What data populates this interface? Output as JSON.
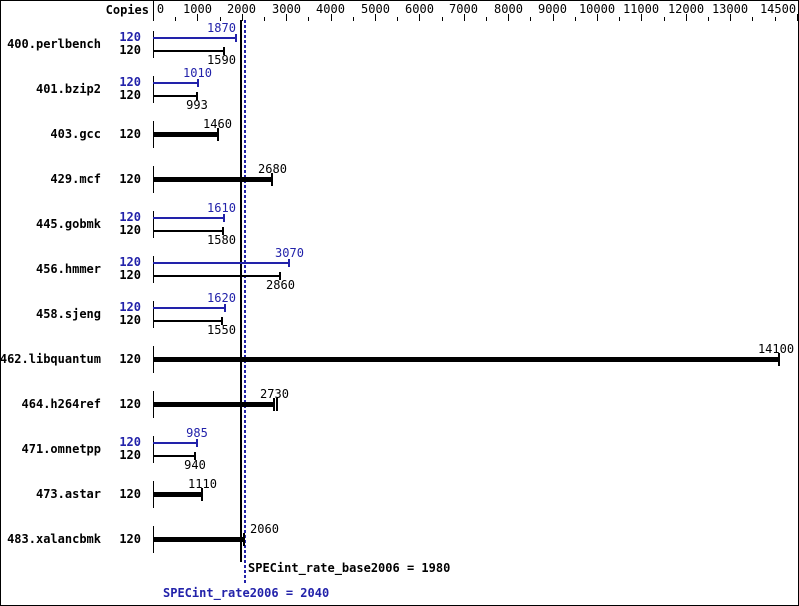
{
  "header": {
    "copies_label": "Copies"
  },
  "colors": {
    "peak_blue": "#2222aa",
    "base_black": "#000000",
    "background": "#ffffff"
  },
  "summary": {
    "base_line_text": "SPECint_rate_base2006 = 1980",
    "peak_line_text": "SPECint_rate2006 = 2040"
  },
  "chart_data": {
    "type": "bar",
    "orientation": "horizontal",
    "title": "",
    "xlabel": "",
    "ylabel": "Copies",
    "xlim": [
      0,
      14500
    ],
    "grid": false,
    "legend_position": "none",
    "axis_labeled_ticks": [
      0,
      1000,
      2000,
      3000,
      4000,
      5000,
      6000,
      7000,
      8000,
      9000,
      10000,
      11000,
      12000,
      13000,
      14500
    ],
    "minor_tick_step": 500,
    "categories": [
      "400.perlbench",
      "401.bzip2",
      "403.gcc",
      "429.mcf",
      "445.gobmk",
      "456.hmmer",
      "458.sjeng",
      "462.libquantum",
      "464.h264ref",
      "471.omnetpp",
      "473.astar",
      "483.xalancbmk"
    ],
    "series": [
      {
        "name": "SPECint_rate2006 (peak)",
        "color": "#2222aa",
        "values": [
          1870,
          1010,
          null,
          null,
          1610,
          3070,
          1620,
          null,
          null,
          985,
          null,
          null
        ]
      },
      {
        "name": "SPECint_rate_base2006 (base)",
        "color": "#000000",
        "values": [
          1590,
          993,
          1460,
          2680,
          1580,
          2860,
          1550,
          14100,
          2730,
          940,
          1110,
          2060
        ]
      }
    ],
    "copies_per_benchmark": [
      120,
      120,
      120,
      120,
      120,
      120,
      120,
      120,
      120,
      120,
      120,
      120
    ],
    "extra_run_caps": [
      {
        "category": "464.h264ref",
        "value": 2800
      }
    ],
    "reference_lines": [
      {
        "name": "base",
        "value": 1980,
        "style": "solid",
        "color": "#000000",
        "label": "SPECint_rate_base2006 = 1980"
      },
      {
        "name": "peak",
        "value": 2040,
        "style": "dotted",
        "color": "#2222aa",
        "label": "SPECint_rate2006 = 2040"
      }
    ]
  }
}
